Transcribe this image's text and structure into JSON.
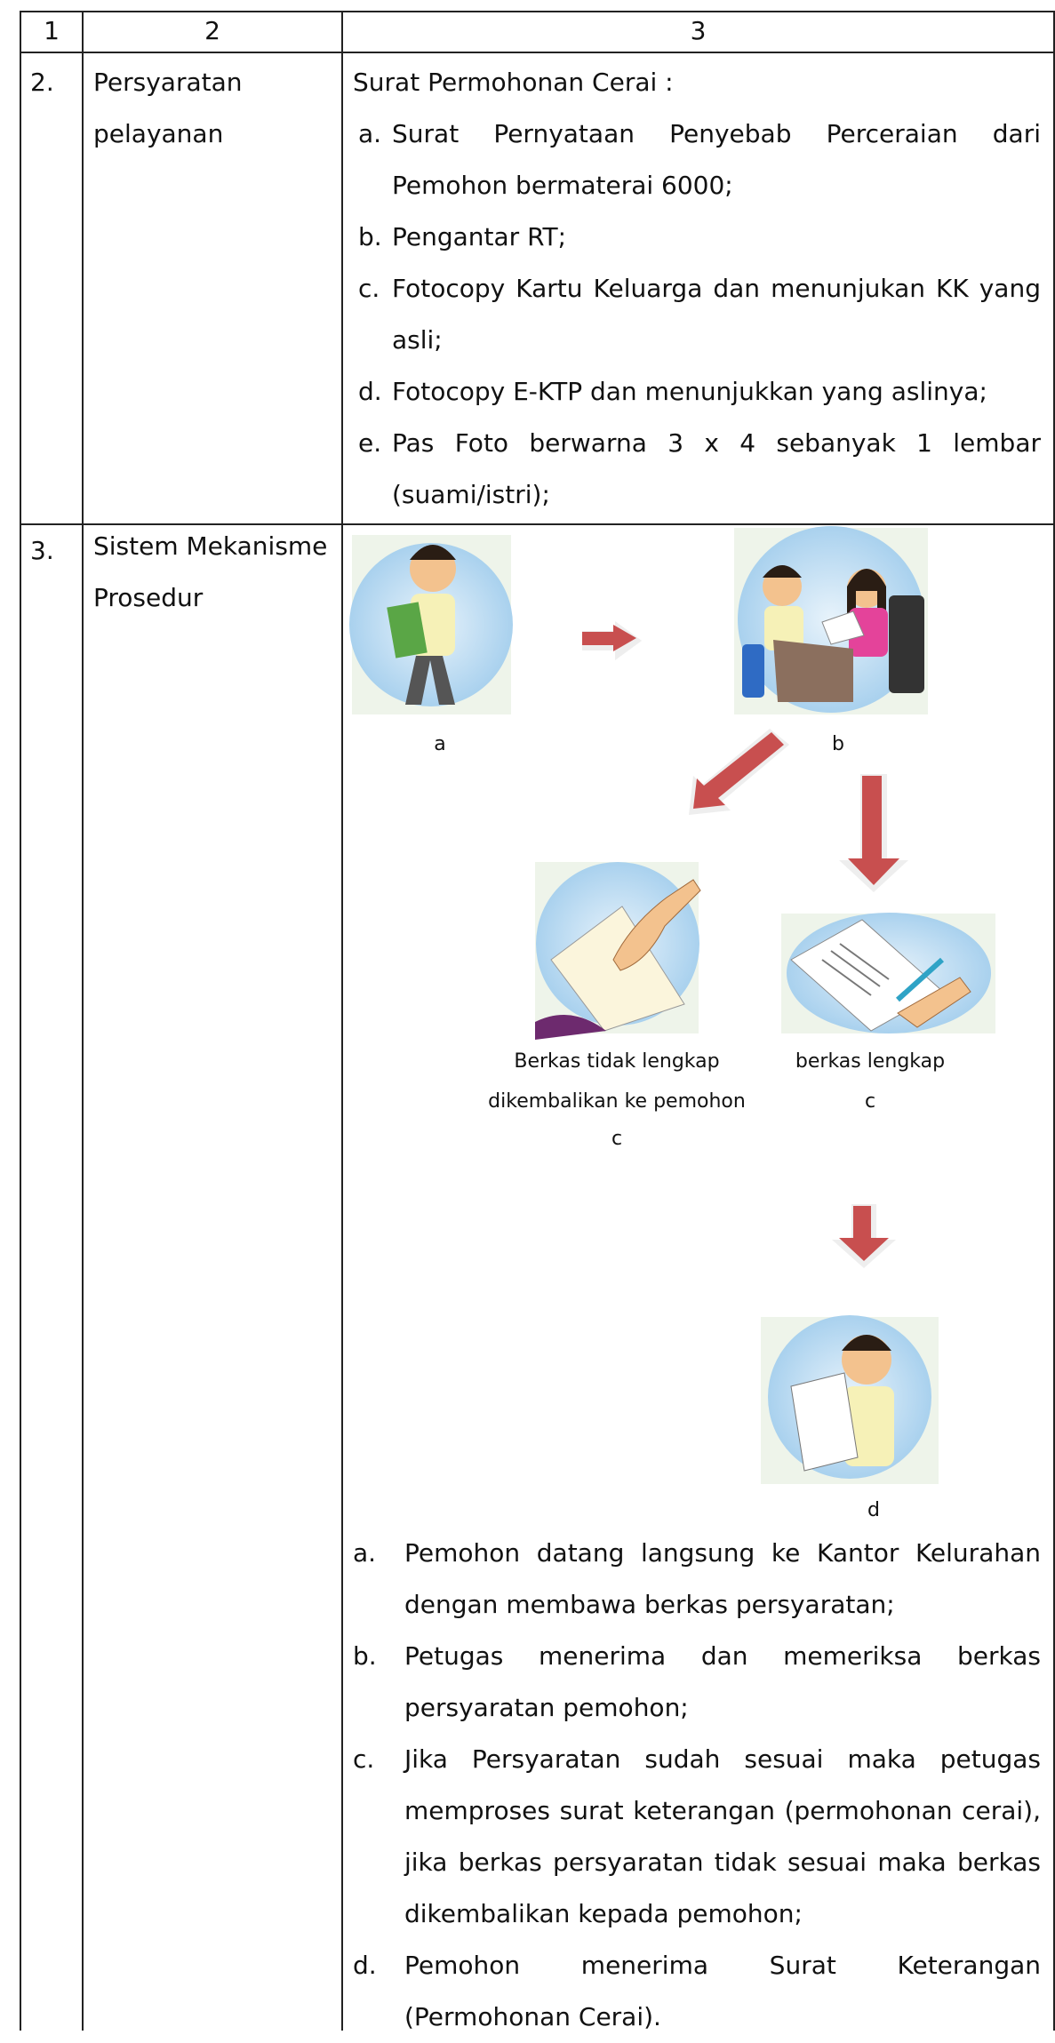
{
  "table": {
    "header": [
      "1",
      "2",
      "3"
    ],
    "rows": [
      {
        "no": "2.",
        "label": "Persyaratan pelayanan",
        "intro": "Surat Permohonan Cerai :",
        "items": [
          {
            "marker": "a.",
            "text": "Surat Pernyataan Penyebab Perceraian dari Pemohon bermaterai 6000;"
          },
          {
            "marker": "b.",
            "text": "Pengantar RT;"
          },
          {
            "marker": "c.",
            "text": "Fotocopy Kartu Keluarga dan menunjukan KK yang asli;"
          },
          {
            "marker": "d.",
            "text": "Fotocopy E-KTP dan menunjukkan yang aslinya;"
          },
          {
            "marker": "e.",
            "text": "Pas Foto berwarna 3 x 4 sebanyak 1 lembar (suami/istri);"
          }
        ]
      },
      {
        "no": "3.",
        "label": "Sistem Mekanisme Prosedur",
        "diagram": {
          "caption_a": "a",
          "caption_b": "b",
          "caption_c1": [
            "Berkas tidak lengkap",
            "dikembalikan ke pemohon",
            "c"
          ],
          "caption_c2": [
            "berkas lengkap",
            "c"
          ],
          "caption_d": "d"
        },
        "items": [
          {
            "marker": "a.",
            "text": "Pemohon datang langsung ke Kantor Kelurahan dengan membawa berkas persyaratan;"
          },
          {
            "marker": "b.",
            "text": "Petugas menerima dan memeriksa berkas persyaratan pemohon;"
          },
          {
            "marker": "c.",
            "text": "Jika Persyaratan sudah sesuai maka petugas memproses surat keterangan (permohonan cerai), jika berkas persyaratan tidak sesuai maka berkas dikembalikan kepada pemohon;"
          },
          {
            "marker": "d.",
            "text": "Pemohon menerima Surat Keterangan (Permohonan Cerai)."
          }
        ]
      }
    ]
  }
}
